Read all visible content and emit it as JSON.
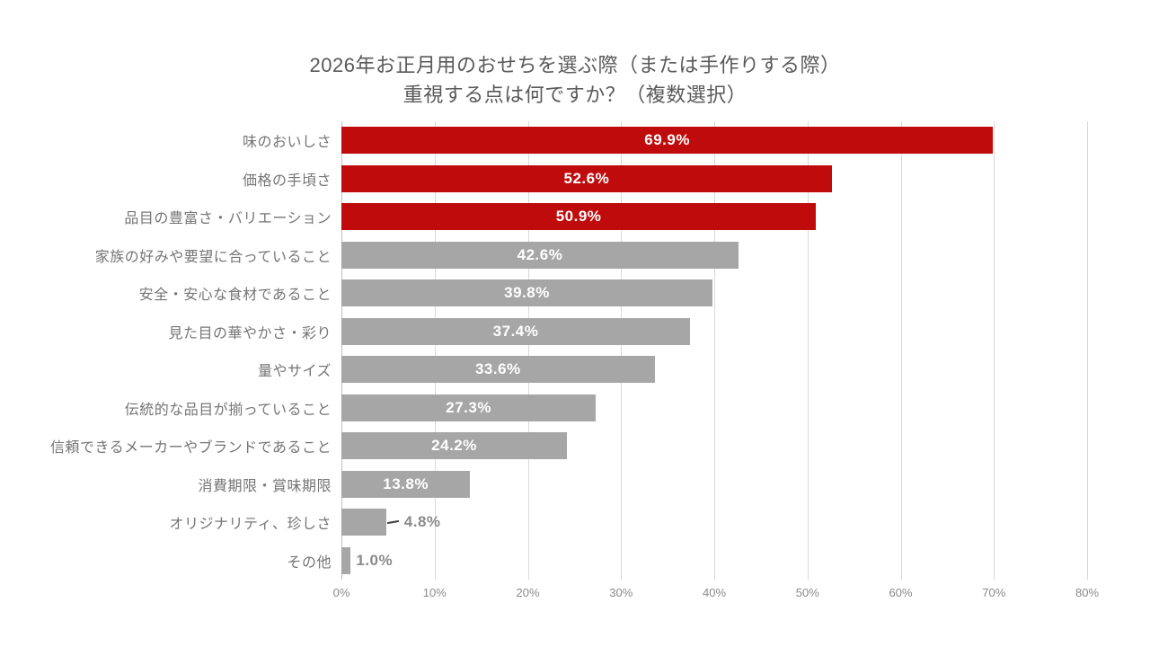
{
  "title_line1": "2026年お正月用のおせちを選ぶ際（または手作りする際）",
  "title_line2": "重視する点は何ですか？（複数選択）",
  "chart_data": {
    "type": "bar",
    "orientation": "horizontal",
    "title": "2026年お正月用のおせちを選ぶ際（または手作りする際） 重視する点は何ですか？（複数選択）",
    "categories": [
      "味のおいしさ",
      "価格の手頃さ",
      "品目の豊富さ・バリエーション",
      "家族の好みや要望に合っていること",
      "安全・安心な食材であること",
      "見た目の華やかさ・彩り",
      "量やサイズ",
      "伝統的な品目が揃っていること",
      "信頼できるメーカーやブランドであること",
      "消費期限・賞味期限",
      "オリジナリティ、珍しさ",
      "その他"
    ],
    "values": [
      69.9,
      52.6,
      50.9,
      42.6,
      39.8,
      37.4,
      33.6,
      27.3,
      24.2,
      13.8,
      4.8,
      1.0
    ],
    "value_labels": [
      "69.9%",
      "52.6%",
      "50.9%",
      "42.6%",
      "39.8%",
      "37.4%",
      "33.6%",
      "27.3%",
      "24.2%",
      "13.8%",
      "4.8%",
      "1.0%"
    ],
    "bar_colors": [
      "red",
      "red",
      "red",
      "gray",
      "gray",
      "gray",
      "gray",
      "gray",
      "gray",
      "gray",
      "gray",
      "gray"
    ],
    "label_placement": [
      "inside",
      "inside",
      "inside",
      "inside",
      "inside",
      "inside",
      "inside",
      "inside",
      "inside",
      "inside",
      "outside-leader",
      "outside"
    ],
    "xlabel": "",
    "ylabel": "",
    "xlim": [
      0,
      80
    ],
    "x_tick_step": 10,
    "x_ticks": [
      "0%",
      "10%",
      "20%",
      "30%",
      "40%",
      "50%",
      "60%",
      "70%",
      "80%"
    ],
    "grid": "vertical",
    "legend": "none",
    "colors": {
      "background": "#ffffff",
      "red_bar": "#c00b0c",
      "gray_bar": "#a6a6a6",
      "gridline": "#d9d9d9",
      "axis_line": "#c0c0c0",
      "title_text": "#595959",
      "category_text": "#757575",
      "tick_text": "#8a8a8a",
      "value_inside_text": "#ffffff",
      "value_outside_text": "#8a8a8a",
      "leader_line": "#3f3f3f"
    }
  }
}
